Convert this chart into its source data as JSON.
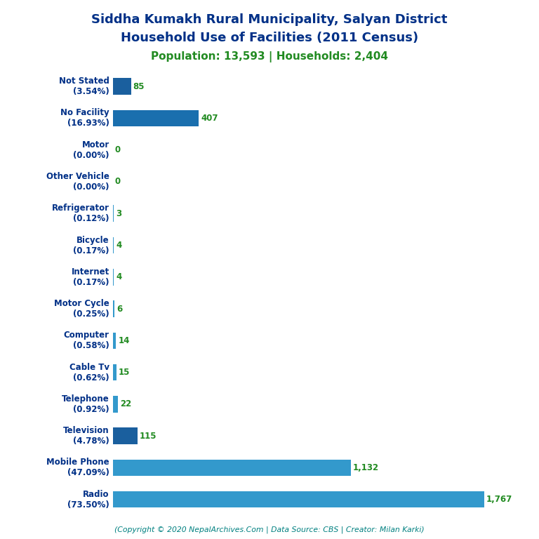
{
  "title_line1": "Siddha Kumakh Rural Municipality, Salyan District",
  "title_line2": "Household Use of Facilities (2011 Census)",
  "subtitle": "Population: 13,593 | Households: 2,404",
  "footer": "(Copyright © 2020 NepalArchives.Com | Data Source: CBS | Creator: Milan Karki)",
  "title_color": "#003087",
  "subtitle_color": "#228B22",
  "footer_color": "#008080",
  "label_color": "#003087",
  "value_color": "#228B22",
  "categories": [
    "Not Stated\n(3.54%)",
    "No Facility\n(16.93%)",
    "Motor\n(0.00%)",
    "Other Vehicle\n(0.00%)",
    "Refrigerator\n(0.12%)",
    "Bicycle\n(0.17%)",
    "Internet\n(0.17%)",
    "Motor Cycle\n(0.25%)",
    "Computer\n(0.58%)",
    "Cable Tv\n(0.62%)",
    "Telephone\n(0.92%)",
    "Television\n(4.78%)",
    "Mobile Phone\n(47.09%)",
    "Radio\n(73.50%)"
  ],
  "values": [
    85,
    407,
    0,
    0,
    3,
    4,
    4,
    6,
    14,
    15,
    22,
    115,
    1132,
    1767
  ],
  "value_labels": [
    "85",
    "407",
    "0",
    "0",
    "3",
    "4",
    "4",
    "6",
    "14",
    "15",
    "22",
    "115",
    "1,132",
    "1,767"
  ],
  "bar_colors": [
    "#1a5f9e",
    "#1a6fae",
    "#3399cc",
    "#3399cc",
    "#3399cc",
    "#3399cc",
    "#3399cc",
    "#3399cc",
    "#3399cc",
    "#3399cc",
    "#3399cc",
    "#1a5f9e",
    "#3399cc",
    "#3399cc"
  ],
  "xlim": [
    0,
    1950
  ],
  "figsize": [
    7.68,
    7.68
  ],
  "dpi": 100
}
